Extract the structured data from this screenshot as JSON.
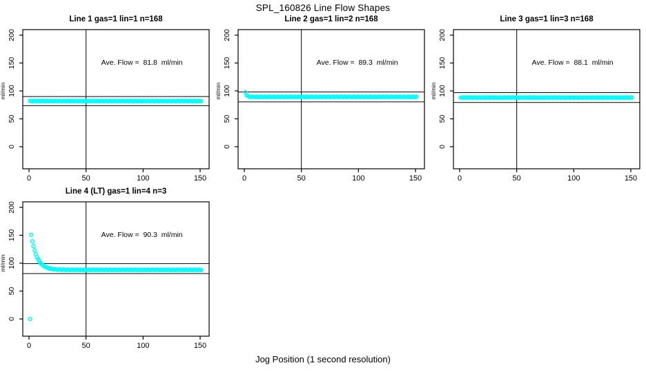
{
  "main_title": "SPL_160826  Line Flow Shapes",
  "xlabel": "Jog Position (1 second resolution)",
  "colors": {
    "points": "#00ffff",
    "axis": "#000000",
    "background": "#ffffff",
    "text": "#000000"
  },
  "chart_data": [
    {
      "type": "scatter",
      "title": "Line 1 gas=1 lin=1 n=168",
      "annotation": "Ave. Flow =  81.8  ml/min",
      "avg_flow_ml_min": 81.8,
      "ylabel": "ml/min",
      "xticks": [
        0,
        50,
        100,
        150
      ],
      "yticks": [
        0,
        50,
        100,
        150,
        200
      ],
      "xlim": [
        0,
        158
      ],
      "ylim": [
        0,
        200
      ],
      "vline_x": 50,
      "hlines": [
        90.0,
        73.6
      ],
      "series": {
        "name": "flow",
        "x_start": 1,
        "x_end": 151,
        "baseline": 81.8,
        "transient_amplitude": 0,
        "transient_tau": 1,
        "outliers": []
      }
    },
    {
      "type": "scatter",
      "title": "Line 2 gas=1 lin=2 n=168",
      "annotation": "Ave. Flow =  89.3  ml/min",
      "avg_flow_ml_min": 89.3,
      "ylabel": "ml/min",
      "xticks": [
        0,
        50,
        100,
        150
      ],
      "yticks": [
        0,
        50,
        100,
        150,
        200
      ],
      "xlim": [
        0,
        158
      ],
      "ylim": [
        0,
        200
      ],
      "vline_x": 50,
      "hlines": [
        98.2,
        80.4
      ],
      "series": {
        "name": "flow",
        "x_start": 1,
        "x_end": 151,
        "baseline": 89.4,
        "transient_amplitude": 8.5,
        "transient_tau": 1.1,
        "outliers": []
      }
    },
    {
      "type": "scatter",
      "title": "Line 3 gas=1 lin=3 n=168",
      "annotation": "Ave. Flow =  88.1  ml/min",
      "avg_flow_ml_min": 88.1,
      "ylabel": "ml/min",
      "xticks": [
        0,
        50,
        100,
        150
      ],
      "yticks": [
        0,
        50,
        100,
        150,
        200
      ],
      "xlim": [
        0,
        158
      ],
      "ylim": [
        0,
        200
      ],
      "vline_x": 50,
      "hlines": [
        96.9,
        79.3
      ],
      "series": {
        "name": "flow",
        "x_start": 1,
        "x_end": 151,
        "baseline": 88.1,
        "transient_amplitude": 0,
        "transient_tau": 1,
        "outliers": []
      }
    },
    {
      "type": "scatter",
      "title": "Line 4 (LT) gas=1 lin=4 n=3",
      "annotation": "Ave. Flow =  90.3  ml/min",
      "avg_flow_ml_min": 90.3,
      "ylabel": "ml/min",
      "xticks": [
        0,
        50,
        100,
        150
      ],
      "yticks": [
        0,
        50,
        100,
        150,
        200
      ],
      "xlim": [
        0,
        158
      ],
      "ylim": [
        0,
        200
      ],
      "vline_x": 50,
      "hlines": [
        99.3,
        81.3
      ],
      "series": {
        "name": "flow",
        "x_start": 2,
        "x_end": 151,
        "baseline": 88.0,
        "transient_amplitude": 63,
        "transient_tau": 5,
        "outliers": [
          {
            "x": 1,
            "y": 0
          }
        ]
      }
    }
  ]
}
